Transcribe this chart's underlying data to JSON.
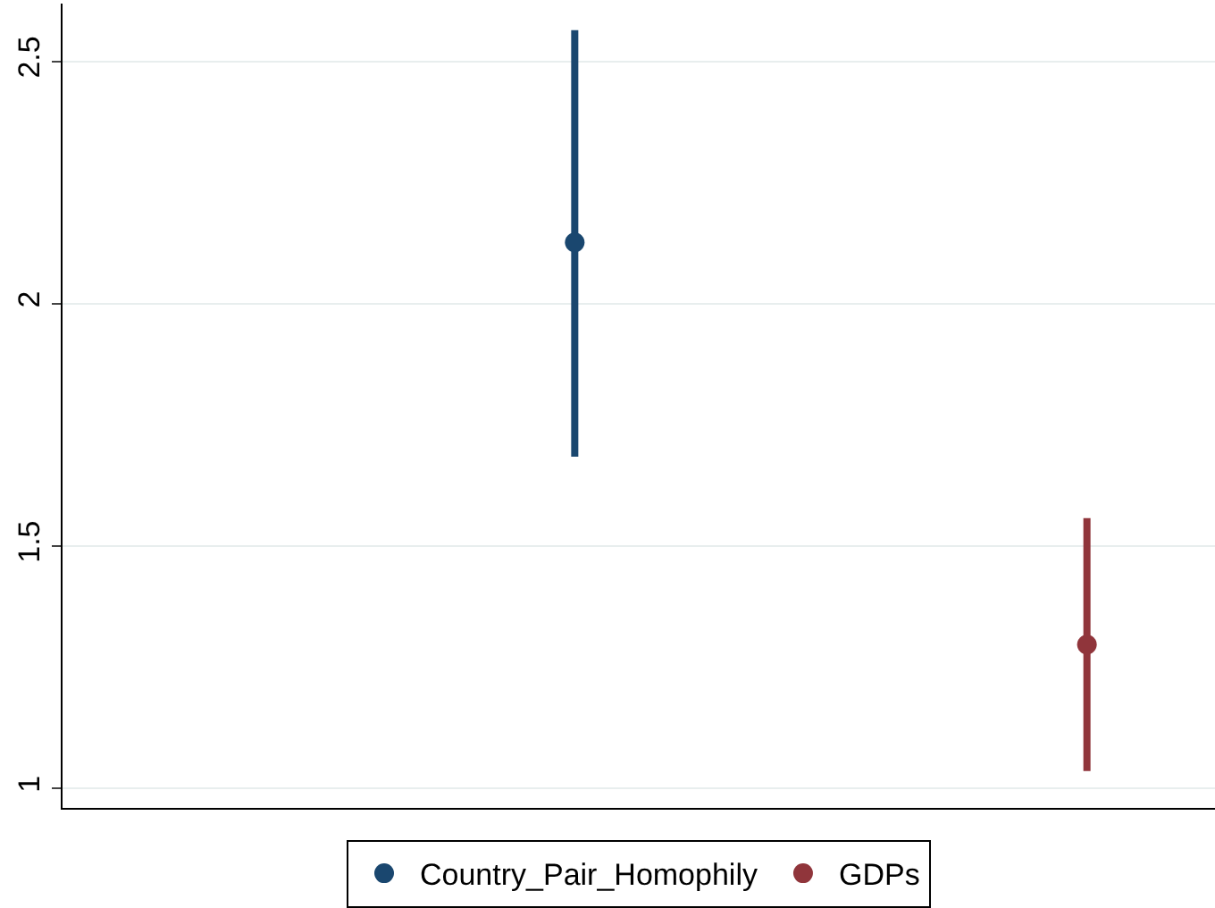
{
  "chart_data": {
    "type": "scatter",
    "categories": [
      null,
      null
    ],
    "series": [
      {
        "name": "Country_Pair_Homophily",
        "color": "#1a476f",
        "values": [
          2.127,
          null
        ],
        "errors": [
          [
            1.685,
            2.565
          ],
          null
        ]
      },
      {
        "name": "GDPs",
        "color": "#90353b",
        "values": [
          null,
          1.297
        ],
        "errors": [
          null,
          [
            1.036,
            1.558
          ]
        ]
      }
    ],
    "ylim": [
      0.96,
      2.62
    ],
    "yticks": [
      1,
      1.5,
      2,
      2.5
    ],
    "grid": "y",
    "legend": "bottom",
    "marker": "circle"
  }
}
